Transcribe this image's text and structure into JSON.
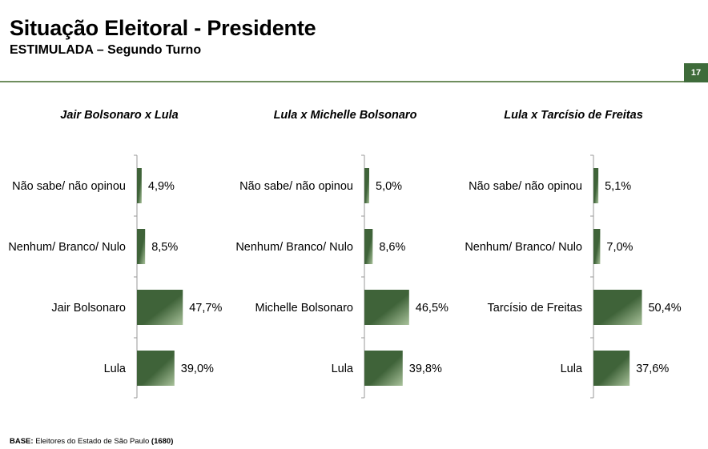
{
  "header": {
    "title": "Situação Eleitoral - Presidente",
    "subtitle": "ESTIMULADA – Segundo Turno",
    "page_number": "17"
  },
  "footer": {
    "base_label": "BASE:",
    "base_text": " Eleitores do Estado de São Paulo ",
    "base_n": "(1680)"
  },
  "colors": {
    "bar_dark": "#3f6339",
    "bar_light": "#a9c29b",
    "axis": "#9a9a9a",
    "accent": "#3e6b3a"
  },
  "chart_data": [
    {
      "type": "bar",
      "orientation": "horizontal",
      "title": "Jair Bolsonaro x Lula",
      "categories": [
        "Não sabe/ não opinou",
        "Nenhum/ Branco/ Nulo",
        "Jair Bolsonaro",
        "Lula"
      ],
      "values": [
        4.9,
        8.5,
        47.7,
        39.0
      ],
      "data_labels": [
        "4,9%",
        "8,5%",
        "47,7%",
        "39,0%"
      ],
      "unit": "%"
    },
    {
      "type": "bar",
      "orientation": "horizontal",
      "title": "Lula x Michelle Bolsonaro",
      "categories": [
        "Não sabe/ não opinou",
        "Nenhum/ Branco/ Nulo",
        "Michelle Bolsonaro",
        "Lula"
      ],
      "values": [
        5.0,
        8.6,
        46.5,
        39.8
      ],
      "data_labels": [
        "5,0%",
        "8,6%",
        "46,5%",
        "39,8%"
      ],
      "unit": "%"
    },
    {
      "type": "bar",
      "orientation": "horizontal",
      "title": "Lula x Tarcísio de Freitas",
      "categories": [
        "Não sabe/ não opinou",
        "Nenhum/ Branco/ Nulo",
        "Tarcísio de Freitas",
        "Lula"
      ],
      "values": [
        5.1,
        7.0,
        50.4,
        37.6
      ],
      "data_labels": [
        "5,1%",
        "7,0%",
        "50,4%",
        "37,6%"
      ],
      "unit": "%"
    }
  ]
}
